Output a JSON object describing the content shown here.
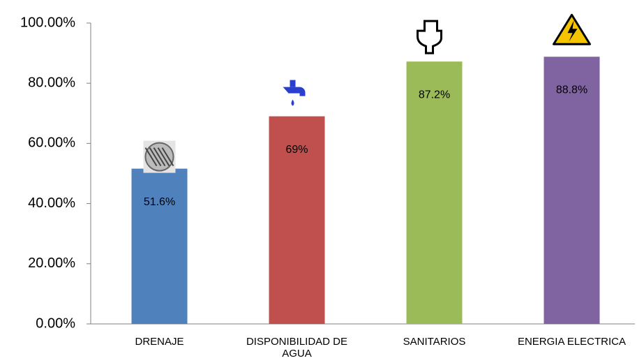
{
  "chart_data": {
    "type": "bar",
    "categories": [
      "DRENAJE",
      "DISPONIBILIDAD DE AGUA",
      "SANITARIOS",
      "ENERGIA ELECTRICA"
    ],
    "values": [
      51.6,
      69,
      87.2,
      88.8
    ],
    "value_labels": [
      "51.6%",
      "69%",
      "87.2%",
      "88.8%"
    ],
    "colors": [
      "#4f81bd",
      "#c0504d",
      "#9bbb59",
      "#8064a2"
    ],
    "ylim": [
      0,
      100
    ],
    "yticks": [
      {
        "value": 0,
        "label": "0.00%"
      },
      {
        "value": 20,
        "label": "20.00%"
      },
      {
        "value": 40,
        "label": "40.00%"
      },
      {
        "value": 60,
        "label": "60.00%"
      },
      {
        "value": 80,
        "label": "80.00%"
      },
      {
        "value": 100,
        "label": "100.00%"
      }
    ],
    "grid": false
  }
}
